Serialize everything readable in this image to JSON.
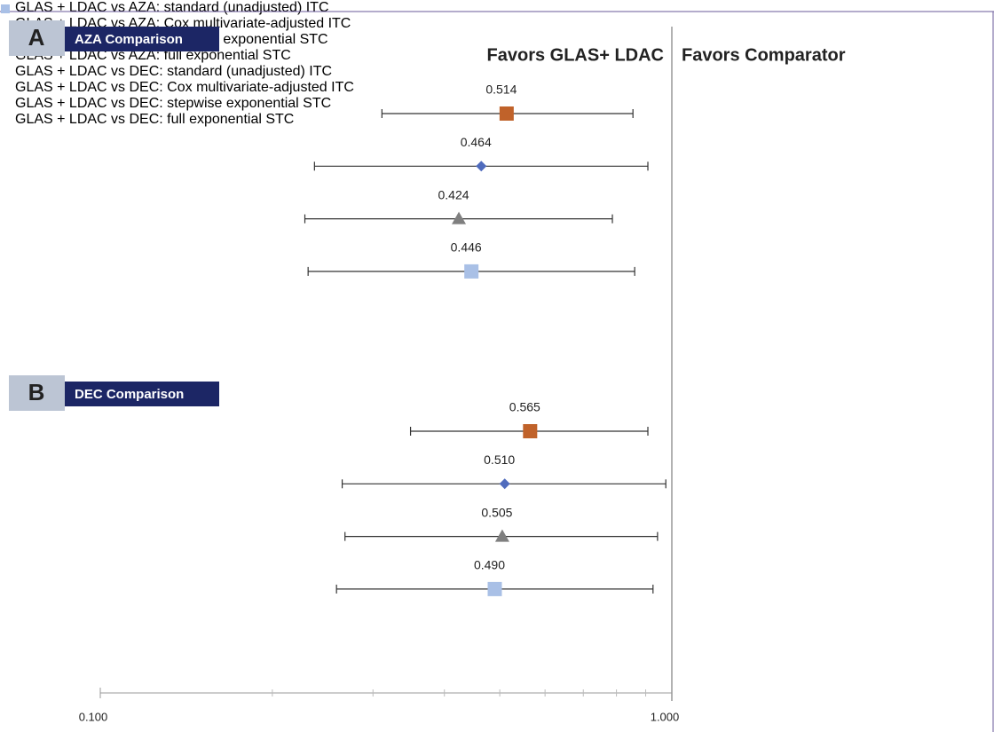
{
  "chart_data": {
    "type": "forest",
    "annotations": [
      "Favors GLAS+ LDAC",
      "Favors Comparator"
    ],
    "xlim": [
      0.1,
      1.0
    ],
    "log_x": true,
    "xticks": [
      {
        "value": 0.1,
        "label": "0.100"
      },
      {
        "value": 1.0,
        "label": "1.000"
      }
    ],
    "xminorticks": [
      0.2,
      0.3,
      0.4,
      0.5,
      0.6,
      0.7,
      0.8,
      0.9
    ],
    "reference_line": 1.0,
    "panels": [
      {
        "label": "A",
        "title": "AZA Comparison",
        "series": [
          {
            "name": "GLAS + LDAC vs AZA: standard (unadjusted) ITC",
            "color": "#c0622a",
            "marker": "square",
            "values": [
              0.514
            ],
            "value_labels": [
              "0.514"
            ],
            "lower": [
              0.311
            ],
            "upper": [
              0.855
            ]
          },
          {
            "name": "GLAS + LDAC vs AZA: Cox multivariate-adjusted ITC",
            "color": "#4f6bbd",
            "marker": "diamond",
            "values": [
              0.464
            ],
            "value_labels": [
              "0.464"
            ],
            "lower": [
              0.237
            ],
            "upper": [
              0.908
            ]
          },
          {
            "name": "GLAS + LDAC vs AZA: stepwise exponential STC",
            "color": "#7f7f7f",
            "marker": "triangle",
            "values": [
              0.424
            ],
            "value_labels": [
              "0.424"
            ],
            "lower": [
              0.228
            ],
            "upper": [
              0.787
            ]
          },
          {
            "name": "GLAS + LDAC vs AZA: full exponential STC",
            "color": "#a9c0e6",
            "marker": "square",
            "values": [
              0.446
            ],
            "value_labels": [
              "0.446"
            ],
            "lower": [
              0.231
            ],
            "upper": [
              0.861
            ]
          }
        ]
      },
      {
        "label": "B",
        "title": "DEC Comparison",
        "series": [
          {
            "name": "GLAS + LDAC vs DEC: standard (unadjusted) ITC",
            "color": "#c0622a",
            "marker": "square",
            "values": [
              0.565
            ],
            "value_labels": [
              "0.565"
            ],
            "lower": [
              0.349
            ],
            "upper": [
              0.908
            ]
          },
          {
            "name": "GLAS + LDAC vs DEC: Cox multivariate-adjusted ITC",
            "color": "#4f6bbd",
            "marker": "diamond",
            "values": [
              0.51
            ],
            "value_labels": [
              "0.510"
            ],
            "lower": [
              0.265
            ],
            "upper": [
              0.976
            ]
          },
          {
            "name": "GLAS + LDAC vs DEC: stepwise exponential STC",
            "color": "#7f7f7f",
            "marker": "triangle",
            "values": [
              0.505
            ],
            "value_labels": [
              "0.505"
            ],
            "lower": [
              0.268
            ],
            "upper": [
              0.944
            ]
          },
          {
            "name": "GLAS + LDAC vs DEC: full exponential STC",
            "color": "#a9c0e6",
            "marker": "square",
            "values": [
              0.49
            ],
            "value_labels": [
              "0.490"
            ],
            "lower": [
              0.259
            ],
            "upper": [
              0.927
            ]
          }
        ]
      }
    ]
  }
}
